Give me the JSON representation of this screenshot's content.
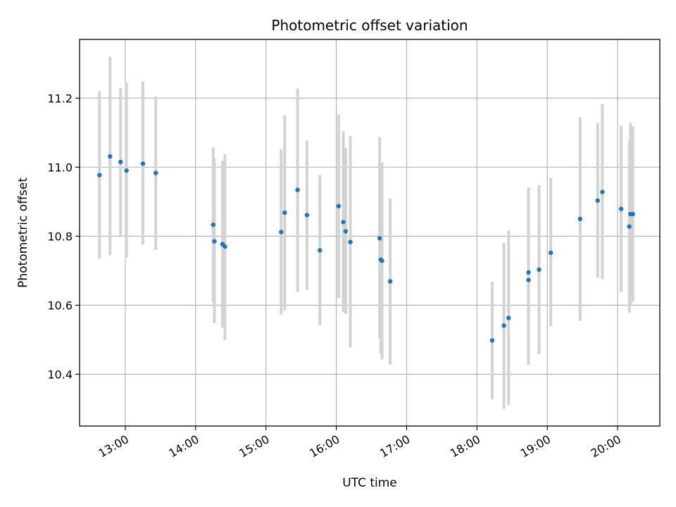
{
  "chart_data": {
    "type": "scatter",
    "title": "Photometric offset variation",
    "xlabel": "UTC time",
    "ylabel": "Photometric offset",
    "x_unit": "UTC time (HH:MM)",
    "xlim": [
      "12:21",
      "20:36"
    ],
    "ylim": [
      10.25,
      11.37
    ],
    "x_ticks": [
      "13:00",
      "14:00",
      "15:00",
      "16:00",
      "17:00",
      "18:00",
      "19:00",
      "20:00"
    ],
    "y_ticks": [
      10.4,
      10.6,
      10.8,
      11.0,
      11.2
    ],
    "y_tick_labels": [
      "10.4",
      "10.6",
      "10.8",
      "11.0",
      "11.2"
    ],
    "grid": true,
    "colors": {
      "point": "#1f77b4",
      "errorbar": "#d3d3d3",
      "grid": "#b0b0b0"
    },
    "series": [
      {
        "points": [
          {
            "x": "12:38",
            "y": 10.977,
            "lo": 10.735,
            "hi": 11.22
          },
          {
            "x": "12:47",
            "y": 11.031,
            "lo": 10.745,
            "hi": 11.32
          },
          {
            "x": "12:56",
            "y": 11.015,
            "lo": 10.8,
            "hi": 11.23
          },
          {
            "x": "13:01",
            "y": 10.99,
            "lo": 10.738,
            "hi": 11.245
          },
          {
            "x": "13:15",
            "y": 11.01,
            "lo": 10.775,
            "hi": 11.248
          },
          {
            "x": "13:26",
            "y": 10.983,
            "lo": 10.76,
            "hi": 11.205
          },
          {
            "x": "14:15",
            "y": 10.833,
            "lo": 10.61,
            "hi": 11.057
          },
          {
            "x": "14:16",
            "y": 10.785,
            "lo": 10.548,
            "hi": 11.025
          },
          {
            "x": "14:23",
            "y": 10.777,
            "lo": 10.535,
            "hi": 11.018
          },
          {
            "x": "14:25",
            "y": 10.77,
            "lo": 10.5,
            "hi": 11.038
          },
          {
            "x": "15:13",
            "y": 10.812,
            "lo": 10.572,
            "hi": 11.052
          },
          {
            "x": "15:16",
            "y": 10.868,
            "lo": 10.585,
            "hi": 11.15
          },
          {
            "x": "15:27",
            "y": 10.934,
            "lo": 10.638,
            "hi": 11.228
          },
          {
            "x": "15:35",
            "y": 10.861,
            "lo": 10.645,
            "hi": 11.077
          },
          {
            "x": "15:46",
            "y": 10.759,
            "lo": 10.542,
            "hi": 10.977
          },
          {
            "x": "16:02",
            "y": 10.887,
            "lo": 10.62,
            "hi": 11.152
          },
          {
            "x": "16:06",
            "y": 10.841,
            "lo": 10.58,
            "hi": 11.104
          },
          {
            "x": "16:08",
            "y": 10.814,
            "lo": 10.575,
            "hi": 11.055
          },
          {
            "x": "16:12",
            "y": 10.783,
            "lo": 10.478,
            "hi": 11.09
          },
          {
            "x": "16:37",
            "y": 10.794,
            "lo": 10.505,
            "hi": 11.087
          },
          {
            "x": "16:38",
            "y": 10.732,
            "lo": 10.46,
            "hi": 11.0
          },
          {
            "x": "16:39",
            "y": 10.729,
            "lo": 10.443,
            "hi": 11.013
          },
          {
            "x": "16:46",
            "y": 10.669,
            "lo": 10.428,
            "hi": 10.91
          },
          {
            "x": "18:13",
            "y": 10.498,
            "lo": 10.327,
            "hi": 10.668
          },
          {
            "x": "18:23",
            "y": 10.541,
            "lo": 10.3,
            "hi": 10.78
          },
          {
            "x": "18:27",
            "y": 10.563,
            "lo": 10.31,
            "hi": 10.817
          },
          {
            "x": "18:44",
            "y": 10.673,
            "lo": 10.428,
            "hi": 10.94
          },
          {
            "x": "18:44",
            "y": 10.695,
            "lo": 10.428,
            "hi": 10.94
          },
          {
            "x": "18:53",
            "y": 10.703,
            "lo": 10.458,
            "hi": 10.948
          },
          {
            "x": "19:03",
            "y": 10.752,
            "lo": 10.54,
            "hi": 10.968
          },
          {
            "x": "19:28",
            "y": 10.85,
            "lo": 10.555,
            "hi": 11.145
          },
          {
            "x": "19:43",
            "y": 10.903,
            "lo": 10.68,
            "hi": 11.128
          },
          {
            "x": "19:47",
            "y": 10.928,
            "lo": 10.675,
            "hi": 11.183
          },
          {
            "x": "20:03",
            "y": 10.879,
            "lo": 10.638,
            "hi": 11.12
          },
          {
            "x": "20:10",
            "y": 10.828,
            "lo": 10.578,
            "hi": 11.078
          },
          {
            "x": "20:11",
            "y": 10.864,
            "lo": 10.6,
            "hi": 11.128
          },
          {
            "x": "20:13",
            "y": 10.864,
            "lo": 10.61,
            "hi": 11.118
          }
        ]
      }
    ]
  }
}
